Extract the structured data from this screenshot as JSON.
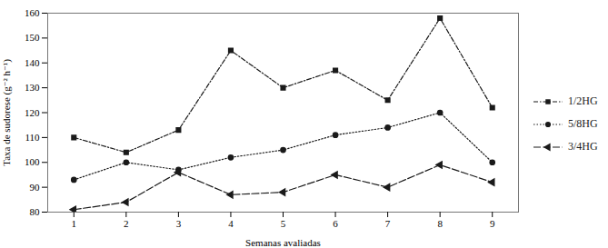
{
  "chart_data": {
    "type": "line",
    "x": [
      1,
      2,
      3,
      4,
      5,
      6,
      7,
      8,
      9
    ],
    "series": [
      {
        "name": "1/2HG",
        "color": "#1a1a1a",
        "marker": "square",
        "line_style": "dashdot",
        "values": [
          110,
          104,
          113,
          145,
          130,
          137,
          125,
          158,
          122
        ]
      },
      {
        "name": "5/8HG",
        "color": "#1a1a1a",
        "marker": "circle",
        "line_style": "dotted",
        "values": [
          93,
          100,
          97,
          102,
          105,
          111,
          114,
          120,
          100
        ]
      },
      {
        "name": "3/4HG",
        "color": "#1a1a1a",
        "marker": "triangle-left",
        "line_style": "dashed",
        "values": [
          81,
          84,
          96,
          87,
          88,
          95,
          90,
          99,
          92
        ]
      }
    ],
    "xlim": [
      0.5,
      9.5
    ],
    "xticks": [
      1,
      2,
      3,
      4,
      5,
      6,
      7,
      8,
      9
    ],
    "ylim": [
      80,
      160
    ],
    "yticks": [
      80,
      90,
      100,
      110,
      120,
      130,
      140,
      150,
      160
    ],
    "xlabel": "Semanas avaliadas",
    "ylabel": "Taxa de sudorese (g⁻² h⁻¹)",
    "legend": "right",
    "grid": false
  }
}
